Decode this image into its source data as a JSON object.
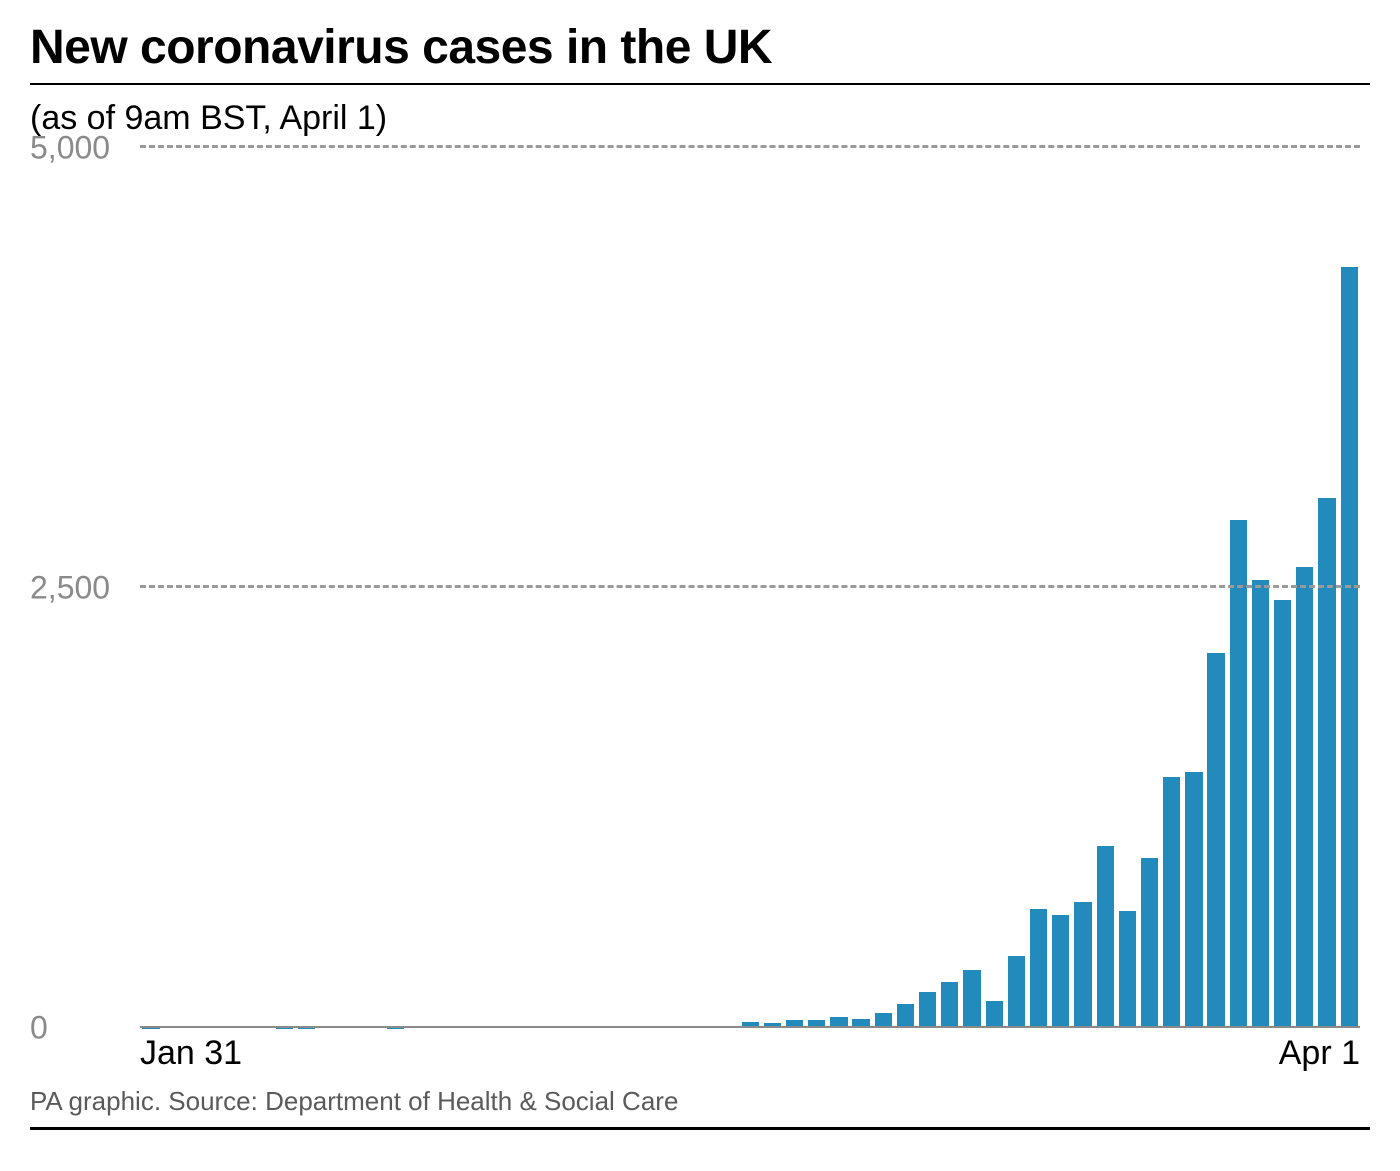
{
  "title": "New coronavirus cases in the UK",
  "subtitle": "(as of 9am BST, April 1)",
  "footer": "PA graphic. Source: Department of Health & Social Care",
  "chart": {
    "type": "bar",
    "ylim": [
      0,
      5000
    ],
    "yticks": [
      0,
      2500,
      5000
    ],
    "ytick_labels": [
      "0",
      "2,500",
      "5,000"
    ],
    "grid_color": "#9a9a9a",
    "grid_dash": "8 8",
    "baseline_color": "#8a8a8a",
    "bar_color": "#238bbc",
    "background_color": "#ffffff",
    "axis_label_color": "#8a8a8a",
    "axis_label_fontsize": 32,
    "xaxis_label_color": "#000000",
    "xaxis_label_fontsize": 34,
    "title_fontsize": 48,
    "title_color": "#000000",
    "subtitle_fontsize": 34,
    "footer_fontsize": 26,
    "footer_color": "#5a5a5a",
    "bar_width_ratio": 0.78,
    "x_start_label": "Jan 31",
    "x_end_label": "Apr 1",
    "values": [
      2,
      0,
      0,
      0,
      0,
      0,
      1,
      1,
      4,
      0,
      0,
      1,
      0,
      0,
      0,
      0,
      0,
      4,
      0,
      0,
      0,
      0,
      3,
      4,
      13,
      3,
      12,
      36,
      29,
      46,
      46,
      65,
      52,
      83,
      134,
      207,
      264,
      330,
      152,
      407,
      676,
      643,
      714,
      1035,
      665,
      967,
      1427,
      1452,
      2129,
      2885,
      2546,
      2433,
      2619,
      3009,
      4324
    ]
  }
}
